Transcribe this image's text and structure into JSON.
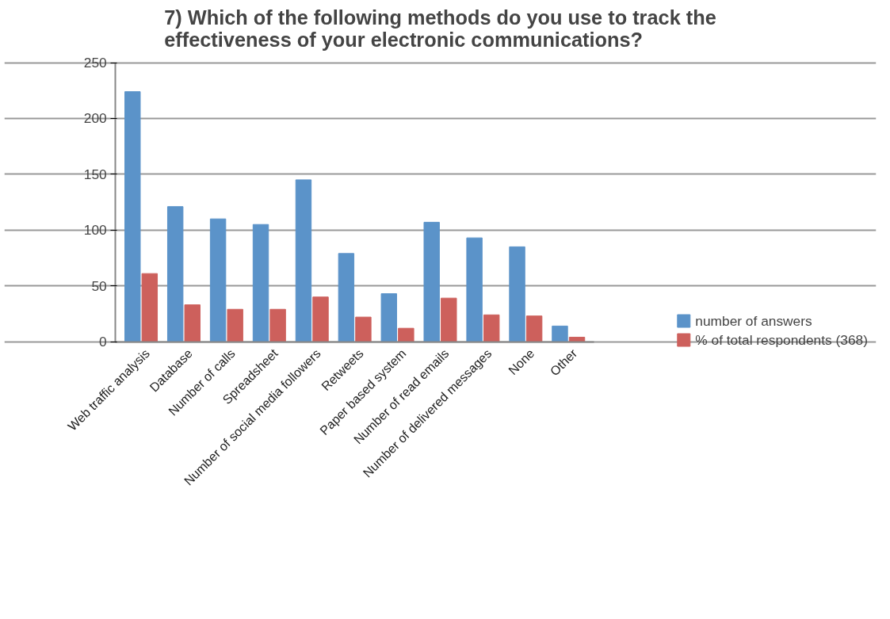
{
  "chart_data": {
    "type": "bar",
    "title": "7) Which of the following methods do you use to track the\neffectiveness of your electronic communications?",
    "categories": [
      "Web traffic analysis",
      "Database",
      "Number of calls",
      "Spreadsheet",
      "Number of social media followers",
      "Retweets",
      "Paper based system",
      "Number of read emails",
      "Number of delivered messages",
      "None",
      "Other"
    ],
    "series": [
      {
        "name": "number of answers",
        "color": "#5b93c9",
        "values": [
          224,
          121,
          110,
          105,
          145,
          79,
          43,
          107,
          93,
          85,
          14
        ]
      },
      {
        "name": "% of total respondents (368)",
        "color": "#cd605c",
        "values": [
          61,
          33,
          29,
          29,
          40,
          22,
          12,
          39,
          24,
          23,
          4
        ]
      }
    ],
    "ylim": [
      0,
      250
    ],
    "yticks": [
      0,
      50,
      100,
      150,
      200,
      250
    ],
    "grid": "y",
    "legend": "right"
  }
}
